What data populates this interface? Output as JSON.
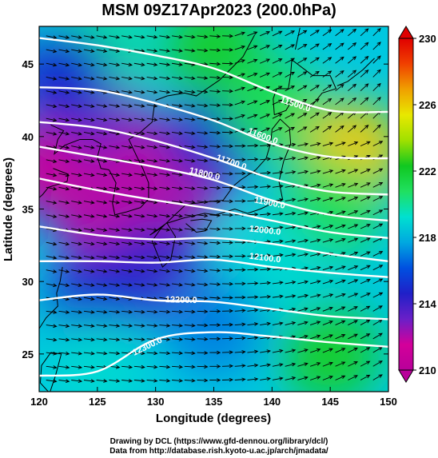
{
  "title": "MSM 09Z17Apr2023 (200.0hPa)",
  "credits": {
    "line1": "Drawing by DCL (https://www.gfd-dennou.org/library/dcl/)",
    "line2": "Data from http://database.rish.kyoto-u.ac.jp/arch/jmadata/"
  },
  "chart_data": {
    "type": "heatmap",
    "title": "MSM 09Z17Apr2023 (200.0hPa)",
    "xlabel": "Longitude (degrees)",
    "ylabel": "Latitude  (degrees)",
    "xlim": [
      120,
      150
    ],
    "ylim": [
      22.4,
      47.6
    ],
    "xticks": [
      120,
      125,
      130,
      135,
      140,
      145,
      150
    ],
    "yticks": [
      25,
      30,
      35,
      40,
      45
    ],
    "colorbar": {
      "range": [
        210,
        230
      ],
      "ticks": [
        210,
        214,
        218,
        222,
        226,
        230
      ],
      "colors": [
        "#b8009a",
        "#d4009a",
        "#6a1fc8",
        "#2020c8",
        "#0050e0",
        "#00a8e0",
        "#00e0d0",
        "#20e060",
        "#10c820",
        "#a0e000",
        "#e8e800",
        "#f0a000",
        "#f04000",
        "#e00000"
      ]
    },
    "temperature_field_samples": [
      {
        "lon": 121,
        "lat": 38,
        "value": 211
      },
      {
        "lon": 128,
        "lat": 38,
        "value": 211
      },
      {
        "lon": 132,
        "lat": 37,
        "value": 212
      },
      {
        "lon": 125,
        "lat": 42,
        "value": 213
      },
      {
        "lon": 125,
        "lat": 35,
        "value": 212
      },
      {
        "lon": 135,
        "lat": 40,
        "value": 215
      },
      {
        "lon": 130,
        "lat": 31,
        "value": 214
      },
      {
        "lon": 125,
        "lat": 29,
        "value": 215
      },
      {
        "lon": 125,
        "lat": 46,
        "value": 220
      },
      {
        "lon": 135,
        "lat": 46,
        "value": 222
      },
      {
        "lon": 140,
        "lat": 42,
        "value": 221
      },
      {
        "lon": 147,
        "lat": 39,
        "value": 226
      },
      {
        "lon": 145,
        "lat": 35,
        "value": 221
      },
      {
        "lon": 140,
        "lat": 31,
        "value": 219
      },
      {
        "lon": 135,
        "lat": 27,
        "value": 217
      },
      {
        "lon": 125,
        "lat": 24,
        "value": 219
      },
      {
        "lon": 145,
        "lat": 25,
        "value": 222
      },
      {
        "lon": 122,
        "lat": 44,
        "value": 215
      }
    ],
    "height_contours": [
      {
        "label": "11500.0",
        "label_lon": 142,
        "label_lat": 42.2,
        "points": [
          [
            120,
            46.8
          ],
          [
            125,
            46.3
          ],
          [
            130,
            45.6
          ],
          [
            135,
            44.7
          ],
          [
            140,
            43.1
          ],
          [
            145,
            41.8
          ],
          [
            150,
            41.7
          ]
        ]
      },
      {
        "label": "11600.0",
        "label_lon": 139.2,
        "label_lat": 40.0,
        "points": [
          [
            120,
            43.4
          ],
          [
            125,
            43.2
          ],
          [
            130,
            42.3
          ],
          [
            135,
            41.1
          ],
          [
            140,
            39.5
          ],
          [
            145,
            38.6
          ],
          [
            150,
            38.5
          ]
        ]
      },
      {
        "label": "11700.0",
        "label_lon": 136.5,
        "label_lat": 38.2,
        "points": [
          [
            120,
            41.0
          ],
          [
            125,
            40.6
          ],
          [
            130,
            39.7
          ],
          [
            135,
            38.5
          ],
          [
            140,
            37.1
          ],
          [
            145,
            36.2
          ],
          [
            150,
            36.0
          ]
        ]
      },
      {
        "label": "11800.0",
        "label_lon": 134.2,
        "label_lat": 37.4,
        "points": [
          [
            120,
            39.3
          ],
          [
            125,
            38.6
          ],
          [
            130,
            37.9
          ],
          [
            135,
            37.0
          ],
          [
            140,
            35.6
          ],
          [
            145,
            34.6
          ],
          [
            150,
            34.2
          ]
        ]
      },
      {
        "label": "11900.0",
        "label_lon": 139.8,
        "label_lat": 35.4,
        "points": [
          [
            120,
            37.1
          ],
          [
            125,
            36.3
          ],
          [
            130,
            35.6
          ],
          [
            135,
            35.0
          ],
          [
            140,
            34.2
          ],
          [
            145,
            33.4
          ],
          [
            150,
            33.0
          ]
        ]
      },
      {
        "label": "12000.0",
        "label_lon": 139.4,
        "label_lat": 33.5,
        "points": [
          [
            120,
            33.8
          ],
          [
            125,
            33.2
          ],
          [
            130,
            32.9
          ],
          [
            135,
            33.0
          ],
          [
            140,
            32.6
          ],
          [
            145,
            31.9
          ],
          [
            150,
            31.4
          ]
        ]
      },
      {
        "label": "12100.0",
        "label_lon": 139.4,
        "label_lat": 31.6,
        "points": [
          [
            120,
            31.4
          ],
          [
            125,
            31.4
          ],
          [
            130,
            31.3
          ],
          [
            135,
            31.5
          ],
          [
            140,
            31.0
          ],
          [
            145,
            30.6
          ],
          [
            150,
            30.3
          ]
        ]
      },
      {
        "label": "12200.0",
        "label_lon": 132.2,
        "label_lat": 28.7,
        "points": [
          [
            120,
            28.7
          ],
          [
            125,
            29.1
          ],
          [
            130,
            28.7
          ],
          [
            135,
            28.6
          ],
          [
            140,
            28.1
          ],
          [
            145,
            27.6
          ],
          [
            150,
            27.4
          ]
        ]
      },
      {
        "label": "12300.0",
        "label_lon": 129.3,
        "label_lat": 25.5,
        "points": [
          [
            120,
            23.5
          ],
          [
            125,
            23.8
          ],
          [
            130,
            26.0
          ],
          [
            135,
            26.5
          ],
          [
            140,
            26.2
          ],
          [
            145,
            25.8
          ],
          [
            150,
            25.5
          ]
        ]
      }
    ],
    "wind_vectors": "Arrows flow mainly west-to-east, tilting southeast over the Sea of Japan and northeast near Hokkaido",
    "grid": false,
    "legend": "colorbar-right"
  }
}
